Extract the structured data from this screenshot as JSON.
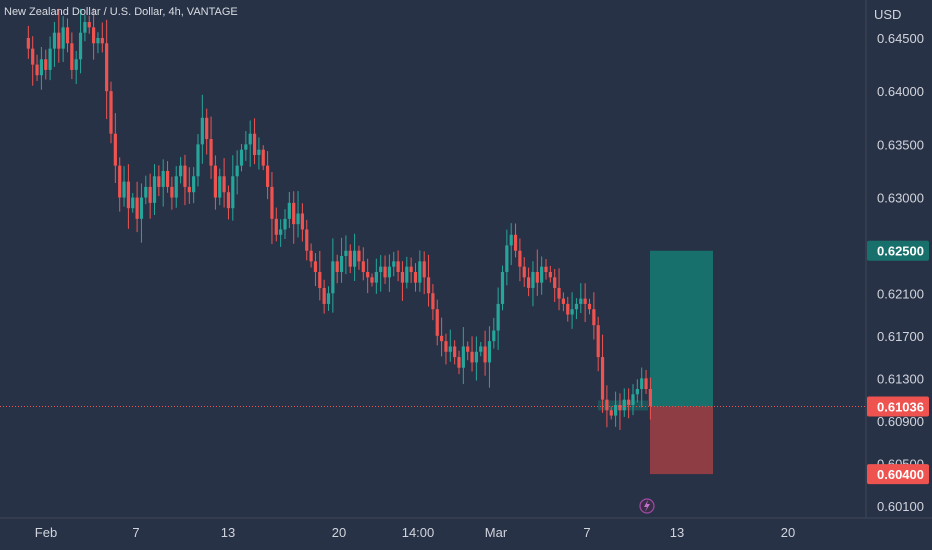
{
  "header": {
    "title": "New Zealand Dollar / U.S. Dollar, 4h, VANTAGE"
  },
  "price_axis": {
    "currency": "USD",
    "ticks": [
      "0.64500",
      "0.64000",
      "0.63500",
      "0.63000",
      "0.62500",
      "0.62100",
      "0.61700",
      "0.61300",
      "0.60900",
      "0.60500",
      "0.60100"
    ]
  },
  "tags": {
    "target": "0.62500",
    "current": "0.61036",
    "stop": "0.60400"
  },
  "time_axis": {
    "labels": [
      "Feb",
      "7",
      "13",
      "20",
      "14:00",
      "Mar",
      "7",
      "13",
      "20"
    ]
  },
  "colors": {
    "background": "#283246",
    "up": "#26a69a",
    "down": "#ef5350",
    "profit_zone": "#17706b",
    "loss_zone": "#8e3d45",
    "price_line": "#ef5350"
  },
  "icons": {
    "event_marker": "lightning-icon"
  },
  "chart_data": {
    "type": "candlestick",
    "symbol": "NZDUSD",
    "timeframe": "4h",
    "ylim": [
      0.5995,
      0.6465
    ],
    "close_series": [
      0.645,
      0.644,
      0.6425,
      0.6415,
      0.643,
      0.642,
      0.644,
      0.6455,
      0.644,
      0.646,
      0.6445,
      0.642,
      0.643,
      0.6455,
      0.6465,
      0.646,
      0.6445,
      0.645,
      0.6445,
      0.64,
      0.636,
      0.633,
      0.63,
      0.6315,
      0.629,
      0.63,
      0.628,
      0.63,
      0.631,
      0.6295,
      0.632,
      0.631,
      0.6325,
      0.631,
      0.63,
      0.632,
      0.633,
      0.631,
      0.6305,
      0.632,
      0.635,
      0.6375,
      0.6355,
      0.633,
      0.63,
      0.632,
      0.6305,
      0.629,
      0.632,
      0.633,
      0.6345,
      0.635,
      0.636,
      0.634,
      0.6345,
      0.633,
      0.631,
      0.628,
      0.6265,
      0.627,
      0.628,
      0.6295,
      0.6275,
      0.6285,
      0.627,
      0.625,
      0.624,
      0.623,
      0.6215,
      0.62,
      0.621,
      0.624,
      0.623,
      0.6245,
      0.625,
      0.6235,
      0.625,
      0.624,
      0.623,
      0.6225,
      0.622,
      0.623,
      0.6235,
      0.6225,
      0.6235,
      0.624,
      0.623,
      0.622,
      0.6235,
      0.623,
      0.622,
      0.624,
      0.6225,
      0.621,
      0.6195,
      0.617,
      0.6165,
      0.6155,
      0.616,
      0.615,
      0.614,
      0.616,
      0.6155,
      0.6145,
      0.6155,
      0.616,
      0.6145,
      0.6165,
      0.6175,
      0.62,
      0.623,
      0.6255,
      0.6265,
      0.625,
      0.6235,
      0.6225,
      0.6215,
      0.623,
      0.622,
      0.6235,
      0.623,
      0.6225,
      0.6215,
      0.6205,
      0.62,
      0.619,
      0.6195,
      0.62,
      0.6205,
      0.62,
      0.6195,
      0.618,
      0.615,
      0.611,
      0.61,
      0.6095,
      0.6105,
      0.61,
      0.611,
      0.6105,
      0.6115,
      0.612,
      0.613,
      0.612,
      0.6104
    ],
    "position": {
      "entry": 0.61036,
      "target": 0.625,
      "stop": 0.604
    }
  }
}
